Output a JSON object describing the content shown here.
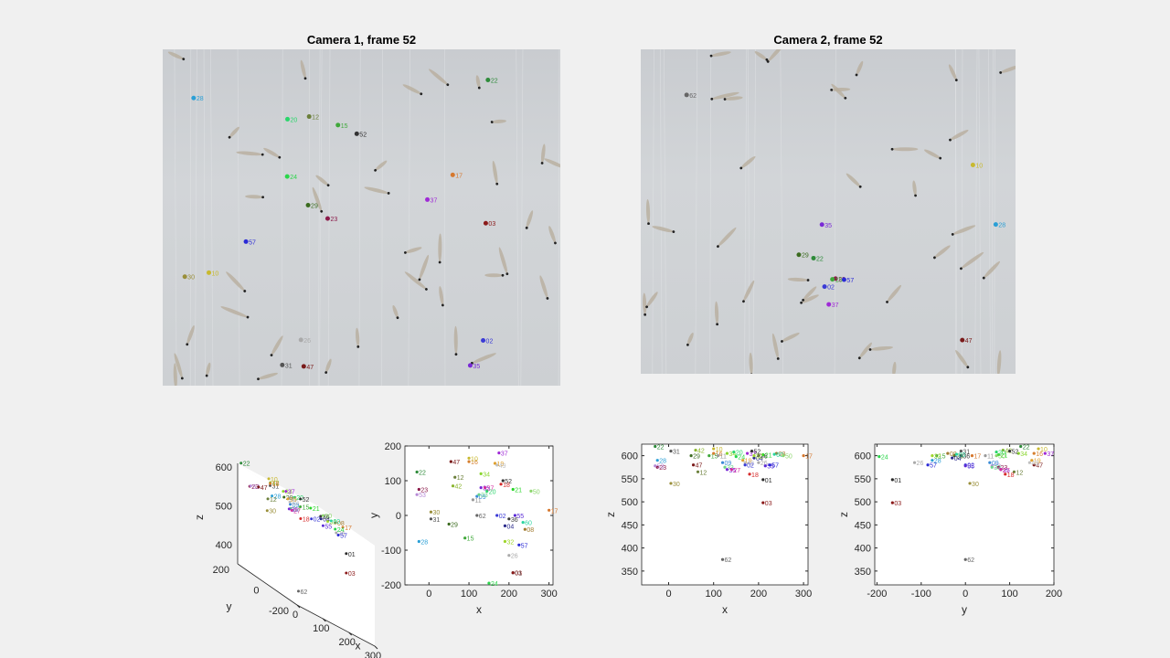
{
  "titles": {
    "cam1": "Camera 1, frame 52",
    "cam2": "Camera 2, frame 52"
  },
  "colors": {
    "background": "#f0f0f0",
    "axis": "#262626",
    "tank": "#cdd0d3"
  },
  "chart_data": [
    {
      "type": "scatter",
      "view": "3d",
      "xlabel": "x",
      "ylabel": "y",
      "zlabel": "z",
      "xticks": [
        0,
        100,
        200,
        300
      ],
      "yticks": [
        -200,
        0,
        200
      ],
      "zticks": [
        400,
        500,
        600
      ],
      "grid": false
    },
    {
      "type": "scatter",
      "view": "top",
      "xlabel": "x",
      "ylabel": "y",
      "xlim": [
        -60,
        310
      ],
      "ylim": [
        -200,
        200
      ],
      "xticks": [
        0,
        100,
        200,
        300
      ],
      "yticks": [
        -200,
        -100,
        0,
        100,
        200
      ],
      "grid": false
    },
    {
      "type": "scatter",
      "view": "x-z",
      "xlabel": "x",
      "ylabel": "z",
      "xlim": [
        -60,
        310
      ],
      "ylim": [
        320,
        625
      ],
      "xticks": [
        0,
        100,
        200,
        300
      ],
      "yticks": [
        350,
        400,
        450,
        500,
        550,
        600
      ],
      "grid": false
    },
    {
      "type": "scatter",
      "view": "y-z",
      "xlabel": "y",
      "ylabel": "z",
      "xlim": [
        -205,
        200
      ],
      "ylim": [
        320,
        625
      ],
      "xticks": [
        -200,
        -100,
        0,
        100,
        200
      ],
      "yticks": [
        350,
        400,
        450,
        500,
        550,
        600
      ],
      "grid": false
    }
  ],
  "points": [
    {
      "id": "22",
      "x": -30,
      "y": 125,
      "z": 620,
      "color": "#2e8b3a"
    },
    {
      "id": "28",
      "x": -25,
      "y": -75,
      "z": 590,
      "color": "#2a9fd6"
    },
    {
      "id": "23",
      "x": -25,
      "y": 75,
      "z": 575,
      "color": "#8b1a4a"
    },
    {
      "id": "53",
      "x": -30,
      "y": 60,
      "z": 578,
      "color": "#b78ad6"
    },
    {
      "id": "30",
      "x": 5,
      "y": 10,
      "z": 540,
      "color": "#9a8f3a"
    },
    {
      "id": "31",
      "x": 5,
      "y": -10,
      "z": 610,
      "color": "#555555"
    },
    {
      "id": "29",
      "x": 50,
      "y": -25,
      "z": 600,
      "color": "#3b6b1f"
    },
    {
      "id": "47",
      "x": 55,
      "y": 155,
      "z": 580,
      "color": "#7a1a1a"
    },
    {
      "id": "12",
      "x": 65,
      "y": 110,
      "z": 565,
      "color": "#6b7f3a"
    },
    {
      "id": "42",
      "x": 60,
      "y": 85,
      "z": 612,
      "color": "#8ab52e"
    },
    {
      "id": "15",
      "x": 90,
      "y": -65,
      "z": 600,
      "color": "#3fa83a"
    },
    {
      "id": "16",
      "x": 100,
      "y": 155,
      "z": 605,
      "color": "#d67f2e"
    },
    {
      "id": "10",
      "x": 100,
      "y": 165,
      "z": 615,
      "color": "#c8b92e"
    },
    {
      "id": "11",
      "x": 110,
      "y": 45,
      "z": 600,
      "color": "#999999"
    },
    {
      "id": "09",
      "x": 120,
      "y": 55,
      "z": 585,
      "color": "#3a8bd6"
    },
    {
      "id": "34",
      "x": 130,
      "y": 120,
      "z": 605,
      "color": "#8ad62e"
    },
    {
      "id": "33",
      "x": 125,
      "y": 60,
      "z": 575,
      "color": "#6bd68a"
    },
    {
      "id": "35",
      "x": 130,
      "y": 80,
      "z": 570,
      "color": "#7a2ad6"
    },
    {
      "id": "20",
      "x": 145,
      "y": 70,
      "z": 608,
      "color": "#2ad66b"
    },
    {
      "id": "27",
      "x": 140,
      "y": 80,
      "z": 570,
      "color": "#d62a9f"
    },
    {
      "id": "19",
      "x": 165,
      "y": 150,
      "z": 590,
      "color": "#e0a02e"
    },
    {
      "id": "37",
      "x": 175,
      "y": 180,
      "z": 605,
      "color": "#9f2ad6"
    },
    {
      "id": "49",
      "x": 170,
      "y": 145,
      "z": 585,
      "color": "#c0c0c0"
    },
    {
      "id": "52",
      "x": 185,
      "y": 100,
      "z": 610,
      "color": "#333333"
    },
    {
      "id": "02",
      "x": 170,
      "y": 0,
      "z": 580,
      "color": "#3a3ad6"
    },
    {
      "id": "18",
      "x": 180,
      "y": 90,
      "z": 560,
      "color": "#d62a2a"
    },
    {
      "id": "04",
      "x": 190,
      "y": -30,
      "z": 595,
      "color": "#2a2a8b"
    },
    {
      "id": "36",
      "x": 200,
      "y": -10,
      "z": 600,
      "color": "#3a3a3a"
    },
    {
      "id": "21",
      "x": 210,
      "y": 75,
      "z": 602,
      "color": "#2ad62a"
    },
    {
      "id": "32",
      "x": 190,
      "y": -75,
      "z": 600,
      "color": "#a0d62e"
    },
    {
      "id": "26",
      "x": 200,
      "y": -115,
      "z": 585,
      "color": "#aaaaaa"
    },
    {
      "id": "55",
      "x": 215,
      "y": 0,
      "z": 578,
      "color": "#5a2ad6"
    },
    {
      "id": "57",
      "x": 225,
      "y": -85,
      "z": 580,
      "color": "#2a2ad6"
    },
    {
      "id": "08",
      "x": 240,
      "y": -40,
      "z": 605,
      "color": "#a07a2e"
    },
    {
      "id": "60",
      "x": 235,
      "y": -20,
      "z": 603,
      "color": "#2ad6a0"
    },
    {
      "id": "50",
      "x": 255,
      "y": 70,
      "z": 600,
      "color": "#8bd66b"
    },
    {
      "id": "17",
      "x": 300,
      "y": 15,
      "z": 600,
      "color": "#d6782e"
    },
    {
      "id": "24",
      "x": 150,
      "y": -195,
      "z": 598,
      "color": "#2ad64a"
    },
    {
      "id": "01",
      "x": 210,
      "y": -165,
      "z": 548,
      "color": "#2a2a2a"
    },
    {
      "id": "03",
      "x": 210,
      "y": -165,
      "z": 498,
      "color": "#8b1a1a"
    },
    {
      "id": "62",
      "x": 120,
      "y": 0,
      "z": 375,
      "color": "#666666"
    }
  ],
  "cam1_labels": [
    {
      "id": "24",
      "color": "#2ad64a"
    },
    {
      "id": "03",
      "color": "#8b1a1a"
    },
    {
      "id": "28",
      "color": "#2a9fd6"
    },
    {
      "id": "15",
      "color": "#3fa83a"
    },
    {
      "id": "29",
      "color": "#3b6b1f"
    },
    {
      "id": "31",
      "color": "#555555"
    },
    {
      "id": "30",
      "color": "#9a8f3a"
    },
    {
      "id": "23",
      "color": "#8b1a4a"
    },
    {
      "id": "22",
      "color": "#2e8b3a"
    },
    {
      "id": "12",
      "color": "#6b7f3a"
    },
    {
      "id": "47",
      "color": "#7a1a1a"
    },
    {
      "id": "10",
      "color": "#c8b92e"
    },
    {
      "id": "35",
      "color": "#7a2ad6"
    },
    {
      "id": "52",
      "color": "#333333"
    },
    {
      "id": "20",
      "color": "#2ad66b"
    },
    {
      "id": "37",
      "color": "#9f2ad6"
    },
    {
      "id": "57",
      "color": "#2a2ad6"
    },
    {
      "id": "02",
      "color": "#3a3ad6"
    },
    {
      "id": "26",
      "color": "#aaaaaa"
    },
    {
      "id": "17",
      "color": "#d6782e"
    }
  ],
  "cam2_labels": [
    {
      "id": "28",
      "color": "#2a9fd6"
    },
    {
      "id": "62",
      "color": "#666666"
    },
    {
      "id": "29",
      "color": "#3b6b1f"
    },
    {
      "id": "23",
      "color": "#8b1a4a"
    },
    {
      "id": "22",
      "color": "#2e8b3a"
    },
    {
      "id": "47",
      "color": "#7a1a1a"
    },
    {
      "id": "10",
      "color": "#c8b92e"
    },
    {
      "id": "02",
      "color": "#3a3ad6"
    },
    {
      "id": "35",
      "color": "#7a2ad6"
    },
    {
      "id": "57",
      "color": "#2a2ad6"
    },
    {
      "id": "15",
      "color": "#3fa83a"
    },
    {
      "id": "37",
      "color": "#9f2ad6"
    }
  ]
}
